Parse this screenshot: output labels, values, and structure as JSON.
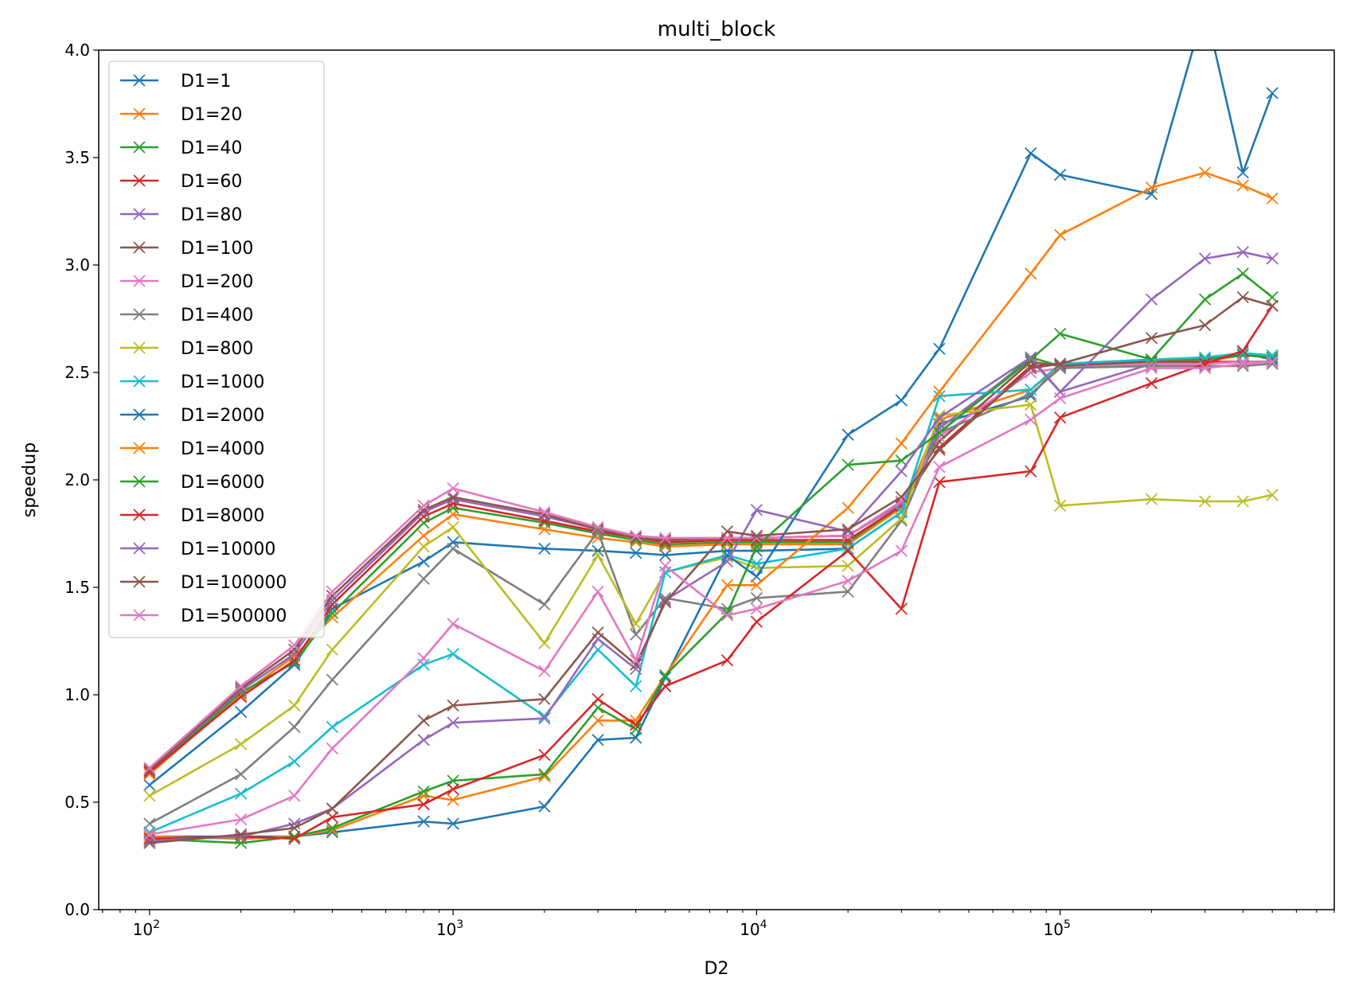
{
  "chart_data": {
    "type": "line",
    "title": "multi_block",
    "xlabel": "D2",
    "ylabel": "speedup",
    "xscale": "log",
    "xlim": [
      68,
      800000
    ],
    "ylim": [
      0,
      4.0
    ],
    "x_ticks": [
      {
        "value": 100,
        "base": "10",
        "exp": "2"
      },
      {
        "value": 1000,
        "base": "10",
        "exp": "3"
      },
      {
        "value": 10000,
        "base": "10",
        "exp": "4"
      },
      {
        "value": 100000,
        "base": "10",
        "exp": "5"
      }
    ],
    "y_ticks": [
      "0.0",
      "0.5",
      "1.0",
      "1.5",
      "2.0",
      "2.5",
      "3.0",
      "3.5",
      "4.0"
    ],
    "legend_position": "upper-left",
    "marker": "x",
    "x": [
      100,
      200,
      300,
      400,
      800,
      1000,
      2000,
      3000,
      4000,
      5000,
      8000,
      10000,
      20000,
      30000,
      40000,
      80000,
      100000,
      200000,
      300000,
      400000,
      500000
    ],
    "series": [
      {
        "name": "D1=1",
        "color": "#1f77b4",
        "values": [
          0.58,
          0.92,
          1.14,
          1.4,
          1.62,
          1.71,
          1.68,
          1.67,
          1.66,
          1.65,
          1.67,
          1.67,
          1.68,
          1.85,
          2.26,
          2.39,
          2.54,
          2.56,
          2.56,
          2.59,
          2.56
        ]
      },
      {
        "name": "D1=20",
        "color": "#ff7f0e",
        "values": [
          0.63,
          1.0,
          1.18,
          1.36,
          1.74,
          1.84,
          1.77,
          1.73,
          1.71,
          1.69,
          1.7,
          1.7,
          1.7,
          1.87,
          2.28,
          2.42,
          2.53,
          2.55,
          2.55,
          2.58,
          2.57
        ]
      },
      {
        "name": "D1=40",
        "color": "#2ca02c",
        "values": [
          0.64,
          1.01,
          1.15,
          1.38,
          1.8,
          1.87,
          1.8,
          1.75,
          1.72,
          1.7,
          1.71,
          1.71,
          1.71,
          1.88,
          2.22,
          2.57,
          2.53,
          2.56,
          2.56,
          2.58,
          2.57
        ]
      },
      {
        "name": "D1=60",
        "color": "#d62728",
        "values": [
          0.64,
          0.99,
          1.16,
          1.42,
          1.83,
          1.89,
          1.81,
          1.76,
          1.73,
          1.71,
          1.72,
          1.72,
          1.72,
          1.88,
          2.15,
          2.53,
          2.54,
          2.55,
          2.55,
          2.55,
          2.55
        ]
      },
      {
        "name": "D1=80",
        "color": "#9467bd",
        "values": [
          0.65,
          1.02,
          1.19,
          1.44,
          1.85,
          1.91,
          1.83,
          1.77,
          1.73,
          1.72,
          1.73,
          1.73,
          1.74,
          1.89,
          2.24,
          2.56,
          2.41,
          2.54,
          2.54,
          2.55,
          2.55
        ]
      },
      {
        "name": "D1=100",
        "color": "#8c564b",
        "values": [
          0.65,
          1.03,
          1.21,
          1.46,
          1.86,
          1.92,
          1.84,
          1.77,
          1.73,
          1.72,
          1.73,
          1.73,
          1.74,
          1.9,
          2.18,
          2.55,
          2.53,
          2.55,
          2.54,
          2.55,
          2.55
        ]
      },
      {
        "name": "D1=200",
        "color": "#e377c2",
        "values": [
          0.66,
          1.04,
          1.23,
          1.48,
          1.88,
          1.96,
          1.85,
          1.78,
          1.74,
          1.73,
          1.73,
          1.73,
          1.74,
          1.9,
          2.2,
          2.5,
          2.52,
          2.54,
          2.54,
          2.55,
          2.55
        ]
      },
      {
        "name": "D1=400",
        "color": "#7f7f7f",
        "values": [
          0.4,
          0.63,
          0.85,
          1.07,
          1.54,
          1.68,
          1.42,
          1.76,
          1.28,
          1.45,
          1.4,
          1.45,
          1.48,
          1.81,
          2.22,
          2.4,
          2.52,
          2.53,
          2.53,
          2.53,
          2.54
        ]
      },
      {
        "name": "D1=800",
        "color": "#bcbd22",
        "values": [
          0.53,
          0.77,
          0.95,
          1.21,
          1.69,
          1.78,
          1.24,
          1.65,
          1.33,
          1.57,
          1.64,
          1.59,
          1.6,
          1.82,
          2.3,
          2.35,
          1.88,
          1.91,
          1.9,
          1.9,
          1.93
        ]
      },
      {
        "name": "D1=1000",
        "color": "#17becf",
        "values": [
          0.36,
          0.54,
          0.69,
          0.85,
          1.14,
          1.19,
          0.9,
          1.21,
          1.04,
          1.57,
          1.65,
          1.61,
          1.68,
          1.85,
          2.39,
          2.42,
          2.54,
          2.56,
          2.57,
          2.59,
          2.58
        ]
      },
      {
        "name": "D1=2000",
        "color": "#1f77b4",
        "values": [
          0.34,
          0.34,
          0.34,
          0.36,
          0.41,
          0.4,
          0.48,
          0.79,
          0.8,
          1.08,
          1.65,
          1.55,
          2.21,
          2.37,
          2.61,
          3.52,
          3.42,
          3.33,
          4.2,
          3.43,
          3.8
        ]
      },
      {
        "name": "D1=4000",
        "color": "#ff7f0e",
        "values": [
          0.34,
          0.33,
          0.34,
          0.37,
          0.53,
          0.51,
          0.62,
          0.88,
          0.88,
          1.09,
          1.51,
          1.51,
          1.87,
          2.17,
          2.41,
          2.96,
          3.14,
          3.36,
          3.43,
          3.37,
          3.31
        ]
      },
      {
        "name": "D1=6000",
        "color": "#2ca02c",
        "values": [
          0.33,
          0.31,
          0.34,
          0.38,
          0.55,
          0.6,
          0.63,
          0.94,
          0.84,
          1.09,
          1.38,
          1.69,
          2.07,
          2.09,
          2.22,
          2.56,
          2.68,
          2.56,
          2.84,
          2.96,
          2.85
        ]
      },
      {
        "name": "D1=8000",
        "color": "#d62728",
        "values": [
          0.33,
          0.34,
          0.33,
          0.43,
          0.49,
          0.56,
          0.72,
          0.98,
          0.86,
          1.04,
          1.16,
          1.34,
          1.67,
          1.4,
          1.99,
          2.04,
          2.29,
          2.45,
          2.54,
          2.6,
          2.81
        ]
      },
      {
        "name": "D1=10000",
        "color": "#9467bd",
        "values": [
          0.32,
          0.34,
          0.4,
          0.47,
          0.79,
          0.87,
          0.89,
          1.26,
          1.12,
          1.44,
          1.62,
          1.86,
          1.76,
          2.04,
          2.29,
          2.57,
          2.41,
          2.84,
          3.03,
          3.06,
          3.03
        ]
      },
      {
        "name": "D1=100000",
        "color": "#8c564b",
        "values": [
          0.31,
          0.35,
          0.38,
          0.47,
          0.88,
          0.95,
          0.98,
          1.29,
          1.14,
          1.43,
          1.76,
          1.74,
          1.77,
          1.92,
          2.14,
          2.52,
          2.54,
          2.66,
          2.72,
          2.85,
          2.81
        ]
      },
      {
        "name": "D1=500000",
        "color": "#e377c2",
        "values": [
          0.35,
          0.42,
          0.53,
          0.75,
          1.17,
          1.33,
          1.11,
          1.48,
          1.16,
          1.6,
          1.37,
          1.4,
          1.53,
          1.67,
          2.06,
          2.28,
          2.38,
          2.52,
          2.52,
          2.54,
          2.55
        ]
      }
    ]
  }
}
